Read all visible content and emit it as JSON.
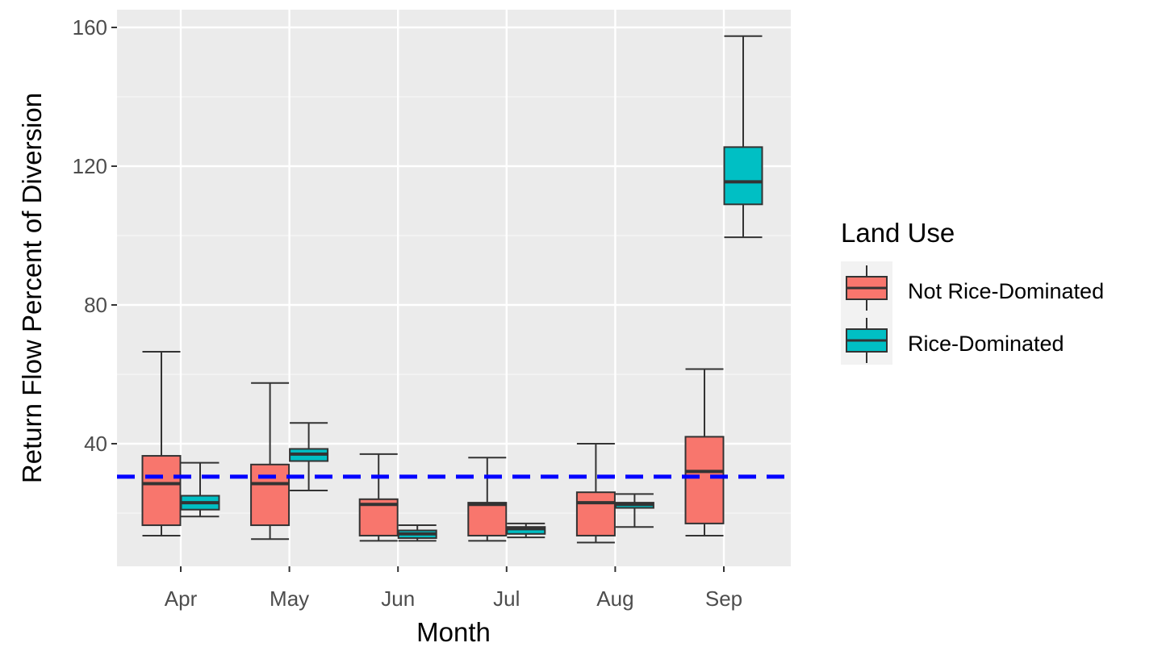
{
  "chart_data": {
    "type": "boxplot",
    "xlabel": "Month",
    "ylabel": "Return Flow Percent of Diversion",
    "categories": [
      "Apr",
      "May",
      "Jun",
      "Jul",
      "Aug",
      "Sep"
    ],
    "yticks": [
      40,
      80,
      120,
      160
    ],
    "ylim": [
      2,
      165
    ],
    "grid": true,
    "legend": {
      "title": "Land Use",
      "position": "right"
    },
    "reference_line": {
      "y": 30.5,
      "style": "dashed",
      "color": "#0000ff"
    },
    "series": [
      {
        "name": "Not Rice-Dominated",
        "color": "#f8766d",
        "boxes": [
          {
            "min": 13.5,
            "q1": 16.5,
            "median": 28.5,
            "q3": 36.5,
            "max": 66.5
          },
          {
            "min": 12.5,
            "q1": 16.5,
            "median": 28.5,
            "q3": 34.0,
            "max": 57.5
          },
          {
            "min": 12.0,
            "q1": 13.5,
            "median": 22.5,
            "q3": 24.0,
            "max": 37.0
          },
          {
            "min": 12.0,
            "q1": 13.5,
            "median": 22.5,
            "q3": 23.0,
            "max": 36.0
          },
          {
            "min": 11.5,
            "q1": 13.5,
            "median": 23.0,
            "q3": 26.0,
            "max": 40.0
          },
          {
            "min": 13.5,
            "q1": 17.0,
            "median": 32.0,
            "q3": 42.0,
            "max": 61.5
          }
        ]
      },
      {
        "name": "Rice-Dominated",
        "color": "#00bfc4",
        "boxes": [
          {
            "min": 19.0,
            "q1": 21.0,
            "median": 23.0,
            "q3": 25.0,
            "max": 34.5
          },
          {
            "min": 26.5,
            "q1": 35.0,
            "median": 37.0,
            "q3": 38.5,
            "max": 46.0
          },
          {
            "min": 12.0,
            "q1": 12.8,
            "median": 14.0,
            "q3": 15.0,
            "max": 16.5
          },
          {
            "min": 13.0,
            "q1": 14.0,
            "median": 15.5,
            "q3": 16.0,
            "max": 17.0
          },
          {
            "min": 16.0,
            "q1": 21.5,
            "median": 22.5,
            "q3": 23.0,
            "max": 25.5
          },
          {
            "min": 99.5,
            "q1": 109.0,
            "median": 115.5,
            "q3": 125.5,
            "max": 157.5
          }
        ]
      }
    ]
  }
}
